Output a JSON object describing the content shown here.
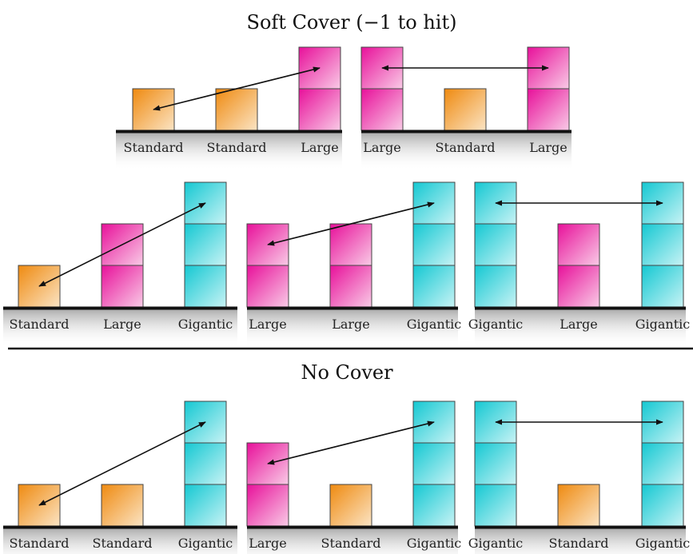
{
  "headings": {
    "soft_cover": "Soft Cover (−1 to hit)",
    "no_cover": "No Cover"
  },
  "size_heights": {
    "Standard": 1,
    "Large": 2,
    "Gigantic": 3
  },
  "colors": {
    "standard": "#f0961e",
    "large": "#ec1e9e",
    "gigantic": "#1ecdd6",
    "ground": "#111111",
    "arrow": "#111111",
    "divider": "#111111"
  },
  "panels": [
    {
      "id": "soft-1",
      "models": [
        "Standard",
        "Standard",
        "Large"
      ],
      "arrow": "left-to-right-top"
    },
    {
      "id": "soft-2",
      "models": [
        "Large",
        "Standard",
        "Large"
      ],
      "arrow": "top-level"
    },
    {
      "id": "soft-3",
      "models": [
        "Standard",
        "Large",
        "Gigantic"
      ],
      "arrow": "left-to-right-top"
    },
    {
      "id": "soft-4",
      "models": [
        "Large",
        "Large",
        "Gigantic"
      ],
      "arrow": "left-to-right-top"
    },
    {
      "id": "soft-5",
      "models": [
        "Gigantic",
        "Large",
        "Gigantic"
      ],
      "arrow": "top-level"
    },
    {
      "id": "none-1",
      "models": [
        "Standard",
        "Standard",
        "Gigantic"
      ],
      "arrow": "left-to-right-top"
    },
    {
      "id": "none-2",
      "models": [
        "Large",
        "Standard",
        "Gigantic"
      ],
      "arrow": "left-to-right-top"
    },
    {
      "id": "none-3",
      "models": [
        "Gigantic",
        "Standard",
        "Gigantic"
      ],
      "arrow": "top-level"
    }
  ]
}
